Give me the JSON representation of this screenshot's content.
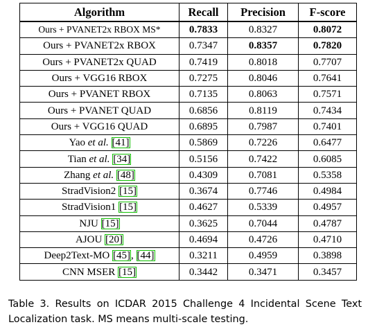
{
  "table": {
    "headers": [
      "Algorithm",
      "Recall",
      "Precision",
      "F-score"
    ],
    "rows": [
      {
        "algorithm": "Ours + PVANET2x RBOX MS*",
        "cites": [],
        "recall": "0.7833",
        "precision": "0.8327",
        "fscore": "0.8072",
        "bold": [
          "recall",
          "fscore"
        ]
      },
      {
        "algorithm": "Ours + PVANET2x RBOX",
        "cites": [],
        "recall": "0.7347",
        "precision": "0.8357",
        "fscore": "0.7820",
        "bold": [
          "precision",
          "fscore"
        ]
      },
      {
        "algorithm": "Ours + PVANET2x QUAD",
        "cites": [],
        "recall": "0.7419",
        "precision": "0.8018",
        "fscore": "0.7707",
        "bold": []
      },
      {
        "algorithm": "Ours + VGG16 RBOX",
        "cites": [],
        "recall": "0.7275",
        "precision": "0.8046",
        "fscore": "0.7641",
        "bold": []
      },
      {
        "algorithm": "Ours + PVANET RBOX",
        "cites": [],
        "recall": "0.7135",
        "precision": "0.8063",
        "fscore": "0.7571",
        "bold": []
      },
      {
        "algorithm": "Ours + PVANET QUAD",
        "cites": [],
        "recall": "0.6856",
        "precision": "0.8119",
        "fscore": "0.7434",
        "bold": []
      },
      {
        "algorithm": "Ours + VGG16 QUAD",
        "cites": [],
        "recall": "0.6895",
        "precision": "0.7987",
        "fscore": "0.7401",
        "bold": []
      },
      {
        "algorithm": "Yao",
        "etal": true,
        "cites": [
          "41"
        ],
        "recall": "0.5869",
        "precision": "0.7226",
        "fscore": "0.6477",
        "bold": []
      },
      {
        "algorithm": "Tian",
        "etal": true,
        "cites": [
          "34"
        ],
        "recall": "0.5156",
        "precision": "0.7422",
        "fscore": "0.6085",
        "bold": []
      },
      {
        "algorithm": "Zhang",
        "etal": true,
        "cites": [
          "48"
        ],
        "recall": "0.4309",
        "precision": "0.7081",
        "fscore": "0.5358",
        "bold": []
      },
      {
        "algorithm": "StradVision2",
        "cites": [
          "15"
        ],
        "recall": "0.3674",
        "precision": "0.7746",
        "fscore": "0.4984",
        "bold": []
      },
      {
        "algorithm": "StradVision1",
        "cites": [
          "15"
        ],
        "recall": "0.4627",
        "precision": "0.5339",
        "fscore": "0.4957",
        "bold": []
      },
      {
        "algorithm": "NJU",
        "cites": [
          "15"
        ],
        "recall": "0.3625",
        "precision": "0.7044",
        "fscore": "0.4787",
        "bold": []
      },
      {
        "algorithm": "AJOU",
        "cites": [
          "20"
        ],
        "recall": "0.4694",
        "precision": "0.4726",
        "fscore": "0.4710",
        "bold": []
      },
      {
        "algorithm": "Deep2Text-MO",
        "cites": [
          "45",
          "44"
        ],
        "recall": "0.3211",
        "precision": "0.4959",
        "fscore": "0.3898",
        "bold": []
      },
      {
        "algorithm": "CNN MSER",
        "cites": [
          "15"
        ],
        "recall": "0.3442",
        "precision": "0.3471",
        "fscore": "0.3457",
        "bold": []
      }
    ],
    "etal_text": "et al."
  },
  "caption": "Table 3. Results on ICDAR 2015 Challenge 4 Incidental Scene Text Localization task. MS means multi-scale testing."
}
